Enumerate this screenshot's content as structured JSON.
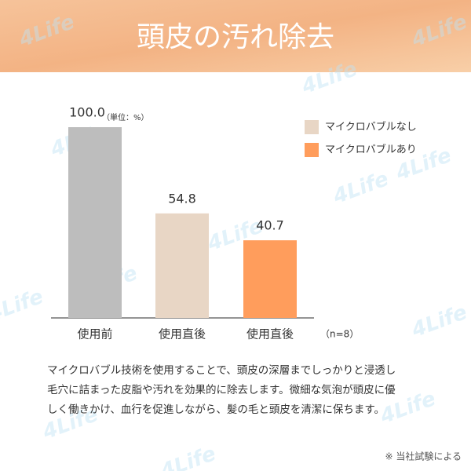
{
  "chart_data": {
    "type": "bar",
    "title": "頭皮の汚れ除去",
    "unit_label": "（単位：%）",
    "sample_note": "（n=8）",
    "categories": [
      "使用前",
      "使用直後",
      "使用直後"
    ],
    "values": [
      100,
      54.8,
      40.7
    ],
    "value_labels": [
      "100.0",
      "54.8",
      "40.7"
    ],
    "colors": [
      "#bdbdbd",
      "#e8d6c5",
      "#ff9d5c"
    ],
    "ylim": [
      0,
      100
    ],
    "legend": [
      {
        "name": "マイクロバブルなし",
        "color": "#e8d6c5"
      },
      {
        "name": "マイクロバブルあり",
        "color": "#ff9d5c"
      }
    ],
    "description": [
      "マイクロバブル技術を使用することで、頭皮の深層までしっかりと浸透し",
      "毛穴に詰まった皮脂や汚れを効果的に除去します。微細な気泡が頭皮に優",
      "しく働きかけ、血行を促進しながら、髪の毛と頭皮を清潔に保ちます。"
    ],
    "footnote": "※ 当社試験による",
    "watermark": "4Life"
  }
}
